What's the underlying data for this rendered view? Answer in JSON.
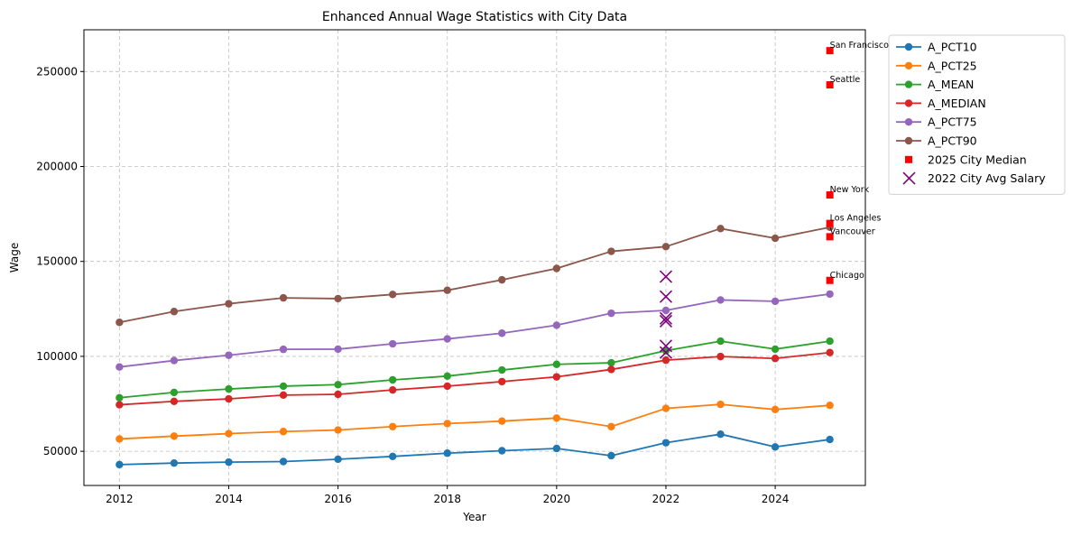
{
  "chart_data": {
    "type": "line",
    "title": "Enhanced Annual Wage Statistics with City Data",
    "xlabel": "Year",
    "ylabel": "Wage",
    "xlim": [
      2011.35,
      2025.65
    ],
    "ylim": [
      32000,
      272000
    ],
    "xticks": [
      2012,
      2014,
      2016,
      2018,
      2020,
      2022,
      2024
    ],
    "yticks": [
      50000,
      100000,
      150000,
      200000,
      250000
    ],
    "grid": true,
    "legend_position": "outside-upper-right",
    "x": [
      2012,
      2013,
      2014,
      2015,
      2016,
      2017,
      2018,
      2019,
      2020,
      2021,
      2022,
      2023,
      2024,
      2025
    ],
    "series": [
      {
        "name": "A_PCT10",
        "color": "#1f77b4",
        "values": [
          43000,
          43800,
          44300,
          44600,
          45800,
          47300,
          49000,
          50300,
          51500,
          47700,
          54500,
          59000,
          52300,
          56200
        ]
      },
      {
        "name": "A_PCT25",
        "color": "#ff7f0e",
        "values": [
          56500,
          58000,
          59300,
          60400,
          61200,
          63000,
          64600,
          65900,
          67500,
          63000,
          72600,
          74700,
          72000,
          74200
        ]
      },
      {
        "name": "A_MEAN",
        "color": "#2ca02c",
        "values": [
          78200,
          81000,
          82800,
          84300,
          85100,
          87600,
          89600,
          92800,
          95800,
          96600,
          103000,
          108000,
          103800,
          108000
        ]
      },
      {
        "name": "A_MEDIAN",
        "color": "#d62728",
        "values": [
          74500,
          76300,
          77600,
          79600,
          80000,
          82300,
          84300,
          86700,
          89200,
          93100,
          98000,
          99900,
          98900,
          102000
        ]
      },
      {
        "name": "A_PCT75",
        "color": "#9467bd",
        "values": [
          94400,
          97800,
          100600,
          103700,
          103800,
          106600,
          109200,
          112200,
          116400,
          122700,
          124200,
          129700,
          129000,
          132800
        ]
      },
      {
        "name": "A_PCT90",
        "color": "#8c564b",
        "values": [
          117900,
          123600,
          127700,
          130800,
          130400,
          132600,
          134800,
          140300,
          146300,
          155300,
          157800,
          167300,
          162200,
          168000
        ]
      }
    ],
    "city_median_2025": {
      "name": "2025 City Median",
      "color": "#ff0000",
      "x": 2025,
      "points": [
        {
          "city": "San Francisco",
          "value": 261000
        },
        {
          "city": "Seattle",
          "value": 243000
        },
        {
          "city": "New York",
          "value": 185000
        },
        {
          "city": "Los Angeles",
          "value": 170000
        },
        {
          "city": "Vancouver",
          "value": 163000
        },
        {
          "city": "Chicago",
          "value": 140000
        }
      ]
    },
    "city_avg_2022": {
      "name": "2022 City Avg Salary",
      "color": "#800080",
      "x": 2022,
      "values": [
        142000,
        131500,
        120000,
        118500,
        105500,
        102000
      ]
    }
  }
}
